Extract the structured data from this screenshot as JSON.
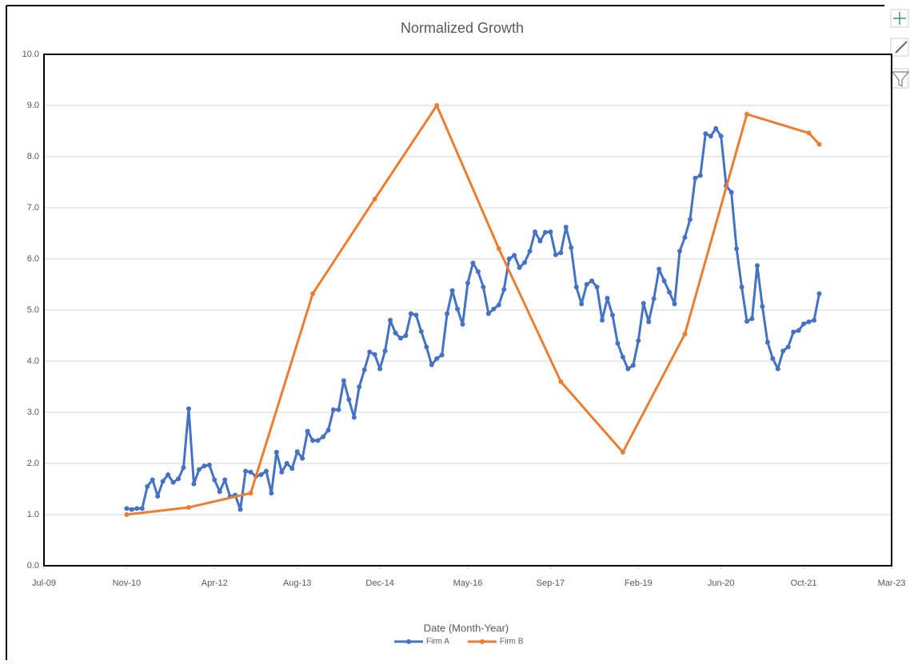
{
  "chart_data": {
    "type": "line",
    "title": "Normalized Growth",
    "x_label": "Date (Month-Year)",
    "xlim": [
      "2009-07",
      "2023-03"
    ],
    "xticks": [
      {
        "value": "2009-07",
        "label": "Jul-09"
      },
      {
        "value": "2010-11",
        "label": "Nov-10"
      },
      {
        "value": "2012-04",
        "label": "Apr-12"
      },
      {
        "value": "2013-08",
        "label": "Aug-13"
      },
      {
        "value": "2014-12",
        "label": "Dec-14"
      },
      {
        "value": "2016-05",
        "label": "May-16"
      },
      {
        "value": "2017-09",
        "label": "Sep-17"
      },
      {
        "value": "2019-02",
        "label": "Feb-19"
      },
      {
        "value": "2020-06",
        "label": "Jun-20"
      },
      {
        "value": "2021-10",
        "label": "Oct-21"
      },
      {
        "value": "2023-03",
        "label": "Mar-23"
      }
    ],
    "ylim": [
      0,
      10
    ],
    "yticks": [
      {
        "value": 0,
        "label": "0.0"
      },
      {
        "value": 1,
        "label": "1.0"
      },
      {
        "value": 2,
        "label": "2.0"
      },
      {
        "value": 3,
        "label": "3.0"
      },
      {
        "value": 4,
        "label": "4.0"
      },
      {
        "value": 5,
        "label": "5.0"
      },
      {
        "value": 6,
        "label": "6.0"
      },
      {
        "value": 7,
        "label": "7.0"
      },
      {
        "value": 8,
        "label": "8.0"
      },
      {
        "value": 9,
        "label": "9.0"
      },
      {
        "value": 10,
        "label": "10.0"
      }
    ],
    "grid": true,
    "legend": "bottom",
    "series": [
      {
        "name": "Firm A",
        "color": "#4472c4",
        "x": [
          "2010-11",
          "2010-12",
          "2011-01",
          "2011-02",
          "2011-03",
          "2011-04",
          "2011-05",
          "2011-06",
          "2011-07",
          "2011-08",
          "2011-09",
          "2011-10",
          "2011-11",
          "2011-12",
          "2012-01",
          "2012-02",
          "2012-03",
          "2012-04",
          "2012-05",
          "2012-06",
          "2012-07",
          "2012-08",
          "2012-09",
          "2012-10",
          "2012-11",
          "2012-12",
          "2013-01",
          "2013-02",
          "2013-03",
          "2013-04",
          "2013-05",
          "2013-06",
          "2013-07",
          "2013-08",
          "2013-09",
          "2013-10",
          "2013-11",
          "2013-12",
          "2014-01",
          "2014-02",
          "2014-03",
          "2014-04",
          "2014-05",
          "2014-06",
          "2014-07",
          "2014-08",
          "2014-09",
          "2014-10",
          "2014-11",
          "2014-12",
          "2015-01",
          "2015-02",
          "2015-03",
          "2015-04",
          "2015-05",
          "2015-06",
          "2015-07",
          "2015-08",
          "2015-09",
          "2015-10",
          "2015-11",
          "2015-12",
          "2016-01",
          "2016-02",
          "2016-03",
          "2016-04",
          "2016-05",
          "2016-06",
          "2016-07",
          "2016-08",
          "2016-09",
          "2016-10",
          "2016-11",
          "2016-12",
          "2017-01",
          "2017-02",
          "2017-03",
          "2017-04",
          "2017-05",
          "2017-06",
          "2017-07",
          "2017-08",
          "2017-09",
          "2017-10",
          "2017-11",
          "2017-12",
          "2018-01",
          "2018-02",
          "2018-03",
          "2018-04",
          "2018-05",
          "2018-06",
          "2018-07",
          "2018-08",
          "2018-09",
          "2018-10",
          "2018-11",
          "2018-12",
          "2019-01",
          "2019-02",
          "2019-03",
          "2019-04",
          "2019-05",
          "2019-06",
          "2019-07",
          "2019-08",
          "2019-09",
          "2019-10",
          "2019-11",
          "2019-12",
          "2020-01",
          "2020-02",
          "2020-03",
          "2020-04",
          "2020-05",
          "2020-06",
          "2020-07",
          "2020-08",
          "2020-09",
          "2020-10",
          "2020-11",
          "2020-12",
          "2021-01",
          "2021-02",
          "2021-03",
          "2021-04",
          "2021-05",
          "2021-06",
          "2021-07",
          "2021-08",
          "2021-09",
          "2021-10",
          "2021-11",
          "2021-12",
          "2022-01"
        ],
        "values": [
          1.12,
          1.1,
          1.12,
          1.12,
          1.55,
          1.68,
          1.36,
          1.65,
          1.78,
          1.63,
          1.7,
          1.92,
          3.07,
          1.6,
          1.88,
          1.95,
          1.97,
          1.68,
          1.45,
          1.68,
          1.35,
          1.38,
          1.1,
          1.85,
          1.83,
          1.75,
          1.78,
          1.85,
          1.42,
          2.22,
          1.83,
          2.0,
          1.9,
          2.23,
          2.1,
          2.63,
          2.45,
          2.45,
          2.52,
          2.65,
          3.05,
          3.05,
          3.62,
          3.25,
          2.9,
          3.5,
          3.83,
          4.18,
          4.13,
          3.85,
          4.2,
          4.8,
          4.55,
          4.45,
          4.5,
          4.93,
          4.9,
          4.58,
          4.28,
          3.93,
          4.05,
          4.12,
          4.93,
          5.38,
          5.02,
          4.72,
          5.53,
          5.92,
          5.75,
          5.45,
          4.93,
          5.02,
          5.1,
          5.4,
          6.0,
          6.07,
          5.83,
          5.93,
          6.15,
          6.53,
          6.35,
          6.52,
          6.53,
          6.08,
          6.12,
          6.62,
          6.22,
          5.45,
          5.12,
          5.5,
          5.57,
          5.45,
          4.8,
          5.23,
          4.9,
          4.35,
          4.08,
          3.85,
          3.92,
          4.4,
          5.13,
          4.77,
          5.22,
          5.8,
          5.57,
          5.35,
          5.12,
          6.15,
          6.42,
          6.77,
          7.58,
          7.63,
          8.45,
          8.4,
          8.55,
          8.4,
          7.43,
          7.3,
          6.2,
          5.45,
          4.78,
          4.83,
          5.87,
          5.07,
          4.37,
          4.05,
          3.85,
          4.2,
          4.28,
          4.57,
          4.6,
          4.73,
          4.77,
          4.8,
          5.32
        ]
      },
      {
        "name": "Firm B",
        "color": "#ed7d31",
        "x": [
          "2010-11",
          "2011-11",
          "2012-11",
          "2013-11",
          "2014-11",
          "2015-11",
          "2016-11",
          "2017-11",
          "2018-11",
          "2019-11",
          "2020-11",
          "2021-11",
          "2022-01"
        ],
        "values": [
          1.0,
          1.14,
          1.42,
          5.32,
          7.17,
          9.0,
          6.2,
          3.6,
          2.22,
          4.53,
          8.83,
          8.46,
          8.24
        ]
      }
    ]
  }
}
